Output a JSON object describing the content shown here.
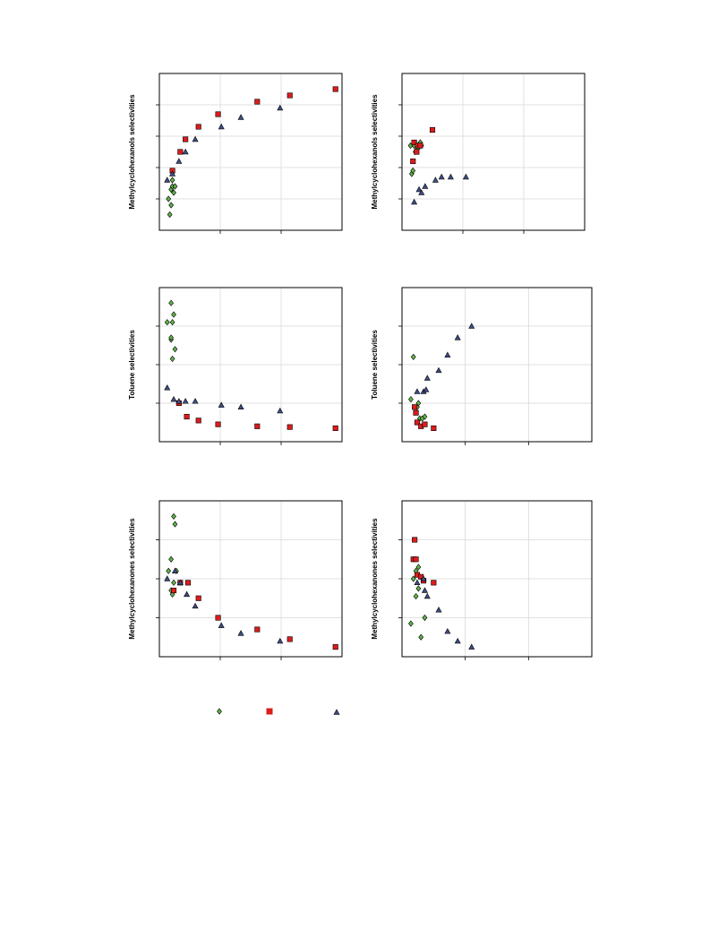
{
  "colors": {
    "green": "#5fb548",
    "red": "#dd1c1c",
    "blue": "#3f4d86",
    "grid": "#d9d9d9",
    "frame": "#000000"
  },
  "chart_data": [
    {
      "type": "scatter",
      "ylabel": "Methylcyclohexanols  selectivities",
      "xlim": [
        0,
        280
      ],
      "ylim": [
        0,
        50
      ],
      "grid": true,
      "series": [
        {
          "marker": "diamond",
          "color": "#5fb548",
          "points": [
            [
              14,
              10
            ],
            [
              16,
              5
            ],
            [
              18,
              8
            ],
            [
              18,
              13
            ],
            [
              20,
              14
            ],
            [
              20,
              16
            ],
            [
              22,
              12
            ],
            [
              24,
              14
            ]
          ]
        },
        {
          "marker": "square",
          "color": "#dd1c1c",
          "points": [
            [
              20,
              19
            ],
            [
              32,
              25
            ],
            [
              40,
              29
            ],
            [
              60,
              33
            ],
            [
              90,
              37
            ],
            [
              150,
              41
            ],
            [
              200,
              43
            ],
            [
              270,
              45
            ]
          ]
        },
        {
          "marker": "triangle",
          "color": "#3f4d86",
          "points": [
            [
              12,
              16
            ],
            [
              20,
              18
            ],
            [
              30,
              22
            ],
            [
              40,
              25
            ],
            [
              55,
              29
            ],
            [
              95,
              33
            ],
            [
              125,
              36
            ],
            [
              185,
              39
            ]
          ]
        }
      ]
    },
    {
      "type": "scatter",
      "ylabel": "Methylcyclohexanols selectivities",
      "xlim": [
        0,
        300
      ],
      "ylim": [
        0,
        50
      ],
      "grid": true,
      "series": [
        {
          "marker": "diamond",
          "color": "#5fb548",
          "points": [
            [
              14,
              27
            ],
            [
              16,
              18
            ],
            [
              18,
              19
            ],
            [
              20,
              27
            ],
            [
              22,
              25
            ],
            [
              26,
              26
            ],
            [
              30,
              28
            ],
            [
              32,
              27
            ]
          ]
        },
        {
          "marker": "square",
          "color": "#dd1c1c",
          "points": [
            [
              18,
              22
            ],
            [
              20,
              28
            ],
            [
              24,
              25
            ],
            [
              26,
              27
            ],
            [
              30,
              27
            ],
            [
              50,
              32
            ]
          ]
        },
        {
          "marker": "triangle",
          "color": "#3f4d86",
          "points": [
            [
              20,
              9
            ],
            [
              28,
              13
            ],
            [
              32,
              12
            ],
            [
              38,
              14
            ],
            [
              55,
              16
            ],
            [
              65,
              17
            ],
            [
              80,
              17
            ],
            [
              105,
              17
            ]
          ]
        }
      ]
    },
    {
      "type": "scatter",
      "ylabel": "Toluene selectivities",
      "xlim": [
        0,
        280
      ],
      "ylim": [
        0,
        40
      ],
      "grid": true,
      "series": [
        {
          "marker": "diamond",
          "color": "#5fb548",
          "points": [
            [
              12,
              31
            ],
            [
              18,
              36
            ],
            [
              18,
              26.5
            ],
            [
              18,
              27
            ],
            [
              20,
              21.5
            ],
            [
              20,
              31
            ],
            [
              22,
              33
            ],
            [
              24,
              24
            ]
          ]
        },
        {
          "marker": "square",
          "color": "#dd1c1c",
          "points": [
            [
              30,
              10
            ],
            [
              42,
              6.5
            ],
            [
              60,
              5.5
            ],
            [
              90,
              4.5
            ],
            [
              150,
              4
            ],
            [
              200,
              3.8
            ],
            [
              270,
              3.5
            ]
          ]
        },
        {
          "marker": "triangle",
          "color": "#3f4d86",
          "points": [
            [
              12,
              14
            ],
            [
              22,
              11
            ],
            [
              30,
              10.5
            ],
            [
              40,
              10.5
            ],
            [
              55,
              10.5
            ],
            [
              95,
              9.5
            ],
            [
              125,
              9
            ],
            [
              185,
              8
            ]
          ]
        }
      ]
    },
    {
      "type": "scatter",
      "ylabel": "Toluene selectivities",
      "xlim": [
        0,
        300
      ],
      "ylim": [
        0,
        40
      ],
      "grid": true,
      "series": [
        {
          "marker": "diamond",
          "color": "#5fb548",
          "points": [
            [
              14,
              11
            ],
            [
              18,
              22
            ],
            [
              24,
              9
            ],
            [
              26,
              10
            ],
            [
              28,
              6
            ],
            [
              32,
              6
            ],
            [
              36,
              6.5
            ]
          ]
        },
        {
          "marker": "square",
          "color": "#dd1c1c",
          "points": [
            [
              20,
              9
            ],
            [
              22,
              7.5
            ],
            [
              24,
              5
            ],
            [
              30,
              4
            ],
            [
              36,
              4.5
            ],
            [
              50,
              3.5
            ]
          ]
        },
        {
          "marker": "triangle",
          "color": "#3f4d86",
          "points": [
            [
              24,
              13
            ],
            [
              34,
              13
            ],
            [
              38,
              13.5
            ],
            [
              40,
              16.5
            ],
            [
              58,
              18.5
            ],
            [
              72,
              22.5
            ],
            [
              88,
              27
            ],
            [
              110,
              30
            ]
          ]
        }
      ]
    },
    {
      "type": "scatter",
      "ylabel": "Methylcyclohexanones selectivities",
      "xlim": [
        0,
        280
      ],
      "ylim": [
        10,
        50
      ],
      "grid": true,
      "series": [
        {
          "marker": "diamond",
          "color": "#5fb548",
          "points": [
            [
              14,
              32
            ],
            [
              18,
              35
            ],
            [
              18,
              27
            ],
            [
              20,
              26
            ],
            [
              22,
              29
            ],
            [
              22,
              46
            ],
            [
              24,
              44
            ],
            [
              26,
              32
            ]
          ]
        },
        {
          "marker": "square",
          "color": "#dd1c1c",
          "points": [
            [
              22,
              27
            ],
            [
              32,
              29
            ],
            [
              44,
              29
            ],
            [
              60,
              25
            ],
            [
              90,
              20
            ],
            [
              150,
              17
            ],
            [
              200,
              14.5
            ],
            [
              270,
              12.5
            ]
          ]
        },
        {
          "marker": "triangle",
          "color": "#3f4d86",
          "points": [
            [
              12,
              30
            ],
            [
              24,
              32
            ],
            [
              32,
              29
            ],
            [
              42,
              26
            ],
            [
              55,
              23
            ],
            [
              95,
              18
            ],
            [
              125,
              16
            ],
            [
              185,
              14
            ]
          ]
        }
      ]
    },
    {
      "type": "scatter",
      "ylabel": "Methylcyclohexanones selectivities",
      "xlim": [
        0,
        300
      ],
      "ylim": [
        10,
        50
      ],
      "grid": true,
      "series": [
        {
          "marker": "diamond",
          "color": "#5fb548",
          "points": [
            [
              14,
              18.5
            ],
            [
              18,
              30
            ],
            [
              22,
              32
            ],
            [
              26,
              33
            ],
            [
              30,
              15
            ],
            [
              36,
              20
            ],
            [
              22,
              25.5
            ],
            [
              26,
              27.5
            ]
          ]
        },
        {
          "marker": "square",
          "color": "#dd1c1c",
          "points": [
            [
              18,
              35
            ],
            [
              20,
              40
            ],
            [
              22,
              35
            ],
            [
              24,
              31
            ],
            [
              30,
              30.5
            ],
            [
              34,
              29.5
            ],
            [
              50,
              29
            ]
          ]
        },
        {
          "marker": "triangle",
          "color": "#3f4d86",
          "points": [
            [
              24,
              29
            ],
            [
              34,
              30
            ],
            [
              36,
              27
            ],
            [
              40,
              25.5
            ],
            [
              58,
              22
            ],
            [
              72,
              16.5
            ],
            [
              88,
              14
            ],
            [
              110,
              12.5
            ]
          ]
        }
      ]
    }
  ],
  "legend": [
    {
      "marker": "diamond",
      "color": "#5fb548"
    },
    {
      "marker": "square",
      "color": "#dd1c1c"
    },
    {
      "marker": "triangle",
      "color": "#3f4d86"
    }
  ]
}
